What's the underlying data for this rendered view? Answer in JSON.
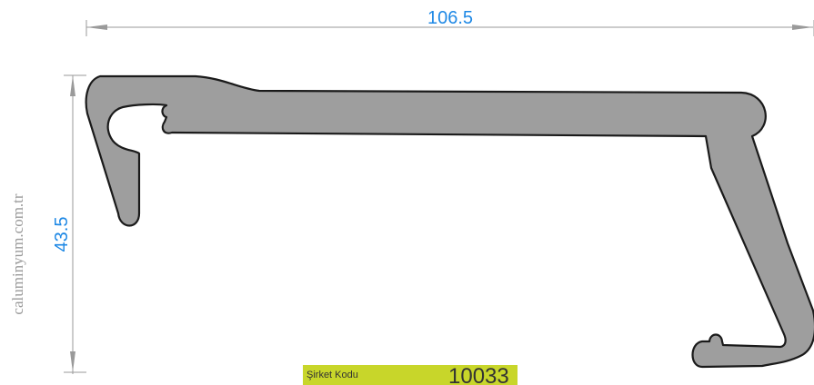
{
  "dimensions": {
    "width_label": "106.5",
    "height_label": "43.5"
  },
  "watermark": "caluminyum.com.tr",
  "code_box": {
    "label": "Şirket Kodu",
    "value": "10033"
  },
  "colors": {
    "profile_fill": "#9e9e9e",
    "profile_stroke": "#1a1a1a",
    "dimension_text": "#1e88e5",
    "dimension_line": "#9a9a9a",
    "code_box_background": "#c8d62a"
  }
}
